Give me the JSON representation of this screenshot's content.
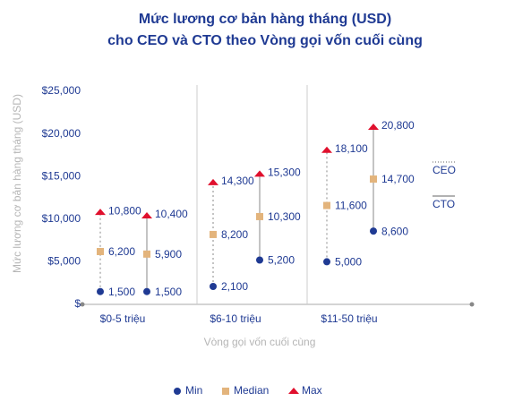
{
  "chart_data": {
    "type": "range-dot",
    "title": [
      "Mức lương cơ bản hàng tháng (USD)",
      "cho CEO và CTO theo Vòng gọi vốn cuối cùng"
    ],
    "y_label": "Mức lương cơ bản hàng tháng (USD)",
    "x_label": "Vòng gọi vốn cuối cùng",
    "categories": [
      "$0-5 triệu",
      "$6-10 triệu",
      "$11-50 triệu"
    ],
    "groups": [
      {
        "name": "CEO",
        "line": "dotted"
      },
      {
        "name": "CTO",
        "line": "solid"
      }
    ],
    "series": [
      {
        "name": "Min",
        "color": "#1f3a93",
        "marker": "circle",
        "values": [
          [
            1500,
            1500
          ],
          [
            2100,
            5200
          ],
          [
            5000,
            8600
          ]
        ],
        "value_labels": [
          [
            "1,500",
            "1,500"
          ],
          [
            "2,100",
            "5,200"
          ],
          [
            "5,000",
            "8,600"
          ]
        ]
      },
      {
        "name": "Median",
        "color": "#e3b47c",
        "marker": "square",
        "values": [
          [
            6200,
            5900
          ],
          [
            8200,
            10300
          ],
          [
            11600,
            14700
          ]
        ],
        "value_labels": [
          [
            "6,200",
            "5,900"
          ],
          [
            "8,200",
            "10,300"
          ],
          [
            "11,600",
            "14,700"
          ]
        ]
      },
      {
        "name": "Max",
        "color": "#e0102d",
        "marker": "triangle",
        "values": [
          [
            10800,
            10400
          ],
          [
            14300,
            15300
          ],
          [
            18100,
            20800
          ]
        ],
        "value_labels": [
          [
            "10,800",
            "10,400"
          ],
          [
            "14,300",
            "15,300"
          ],
          [
            "18,100",
            "20,800"
          ]
        ]
      }
    ],
    "ylim": [
      0,
      25000
    ],
    "yticks": [
      {
        "value": 0,
        "label": "$"
      },
      {
        "value": 5000,
        "label": "$5,000"
      },
      {
        "value": 10000,
        "label": "$10,000"
      },
      {
        "value": 15000,
        "label": "$15,000"
      },
      {
        "value": 20000,
        "label": "$20,000"
      },
      {
        "value": 25000,
        "label": "$25,000"
      }
    ],
    "legend": "bottom"
  }
}
